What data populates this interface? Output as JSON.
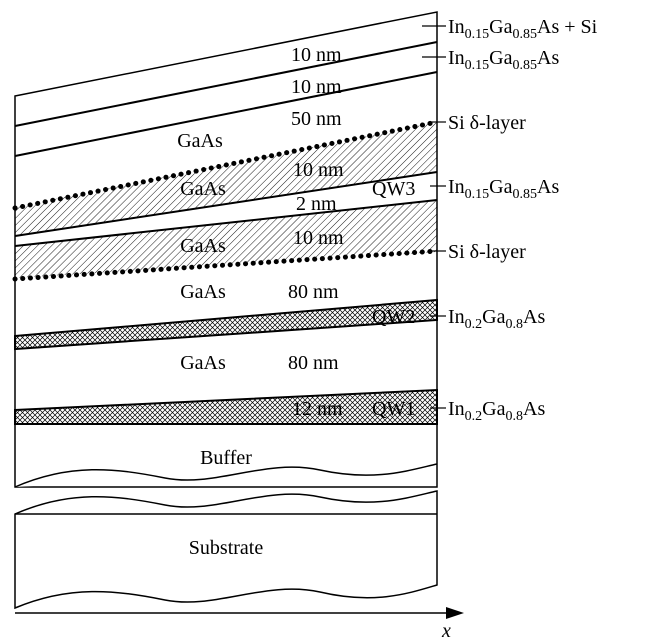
{
  "layers": {
    "gaas_1": "GaAs",
    "gaas_2": "GaAs",
    "gaas_3": "GaAs",
    "gaas_4": "GaAs",
    "gaas_5": "GaAs",
    "buffer": "Buffer",
    "substrate": "Substrate"
  },
  "thickness": {
    "t1": "10 nm",
    "t2": "10 nm",
    "t3": "50 nm",
    "t4": "10 nm",
    "t5": "2 nm",
    "t6": "10 nm",
    "t7": "80 nm",
    "t8": "80 nm",
    "t9": "12 nm"
  },
  "wells": {
    "qw3": "QW3",
    "qw2": "QW2",
    "qw1": "QW1"
  },
  "right_labels": {
    "cap_in": "In",
    "cap_x": "0.15",
    "cap_ga": "Ga",
    "cap_y": "0.85",
    "cap_tail": "As + Si",
    "l2_in": "In",
    "l2_x": "0.15",
    "l2_ga": "Ga",
    "l2_y": "0.85",
    "l2_tail": "As",
    "si_delta_top": "Si δ-layer",
    "qw3_in": "In",
    "qw3_x": "0.15",
    "qw3_ga": "Ga",
    "qw3_y": "0.85",
    "qw3_tail": "As",
    "si_delta_bottom": "Si δ-layer",
    "qw2_in": "In",
    "qw2_x": "0.2",
    "qw2_ga": "Ga",
    "qw2_y": "0.8",
    "qw2_tail": "As",
    "qw1_in": "In",
    "qw1_x": "0.2",
    "qw1_ga": "Ga",
    "qw1_y": "0.8",
    "qw1_tail": "As"
  },
  "axis": {
    "x_label": "x"
  },
  "fills": {
    "gaas_hatch": "#000000",
    "ingaas_cross": "#000000",
    "line": "#000000"
  }
}
